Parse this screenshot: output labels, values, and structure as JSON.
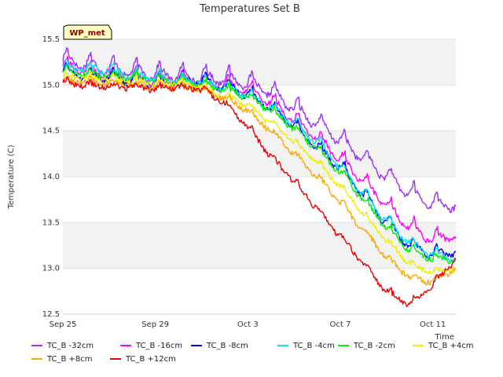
{
  "chart_data": {
    "type": "line",
    "title": "Temperatures Set B",
    "xlabel": "Time",
    "ylabel": "Temperature (C)",
    "badge": "WP_met",
    "x_range": [
      "2023-09-25",
      "2023-10-12"
    ],
    "x_ticks": [
      {
        "date": "2023-09-25",
        "label": "Sep 25"
      },
      {
        "date": "2023-09-29",
        "label": "Sep 29"
      },
      {
        "date": "2023-10-03",
        "label": "Oct 3"
      },
      {
        "date": "2023-10-07",
        "label": "Oct 7"
      },
      {
        "date": "2023-10-11",
        "label": "Oct 11"
      }
    ],
    "ylim": [
      12.5,
      15.5
    ],
    "y_ticks": [
      "12.5",
      "13.0",
      "13.5",
      "14.0",
      "14.5",
      "15.0",
      "15.5"
    ],
    "grid": "horizontal bands",
    "legend_position": "bottom",
    "series": [
      {
        "name": "TC_B -32cm",
        "color": "#9b30ff",
        "x": [
          "2023-09-25",
          "2023-09-26",
          "2023-09-27",
          "2023-09-28",
          "2023-09-29",
          "2023-09-30",
          "2023-10-01",
          "2023-10-02",
          "2023-10-03",
          "2023-10-04",
          "2023-10-05",
          "2023-10-06",
          "2023-10-07",
          "2023-10-08",
          "2023-10-09",
          "2023-10-10",
          "2023-10-11",
          "2023-10-12"
        ],
        "y": [
          15.28,
          15.22,
          15.18,
          15.15,
          15.12,
          15.1,
          15.08,
          15.07,
          15.02,
          14.92,
          14.75,
          14.58,
          14.4,
          14.2,
          14.0,
          13.82,
          13.7,
          13.68
        ]
      },
      {
        "name": "TC_B -16cm",
        "color": "#ff00ff",
        "x": [
          "2023-09-25",
          "2023-09-26",
          "2023-09-27",
          "2023-09-28",
          "2023-09-29",
          "2023-09-30",
          "2023-10-01",
          "2023-10-02",
          "2023-10-03",
          "2023-10-04",
          "2023-10-05",
          "2023-10-06",
          "2023-10-07",
          "2023-10-08",
          "2023-10-09",
          "2023-10-10",
          "2023-10-11",
          "2023-10-12"
        ],
        "y": [
          15.22,
          15.15,
          15.1,
          15.08,
          15.05,
          15.05,
          15.02,
          15.0,
          14.95,
          14.82,
          14.62,
          14.42,
          14.2,
          13.95,
          13.68,
          13.45,
          13.32,
          13.35
        ]
      },
      {
        "name": "TC_B -8cm",
        "color": "#0000ee",
        "x": [
          "2023-09-25",
          "2023-09-26",
          "2023-09-27",
          "2023-09-28",
          "2023-09-29",
          "2023-09-30",
          "2023-10-01",
          "2023-10-02",
          "2023-10-03",
          "2023-10-04",
          "2023-10-05",
          "2023-10-06",
          "2023-10-07",
          "2023-10-08",
          "2023-10-09",
          "2023-10-10",
          "2023-10-11",
          "2023-10-12"
        ],
        "y": [
          15.15,
          15.1,
          15.08,
          15.05,
          15.02,
          15.05,
          15.05,
          14.98,
          14.9,
          14.75,
          14.55,
          14.32,
          14.1,
          13.8,
          13.5,
          13.25,
          13.15,
          13.18
        ]
      },
      {
        "name": "TC_B -4cm",
        "color": "#00e5ee",
        "x": [
          "2023-09-25",
          "2023-09-26",
          "2023-09-27",
          "2023-09-28",
          "2023-09-29",
          "2023-09-30",
          "2023-10-01",
          "2023-10-02",
          "2023-10-03",
          "2023-10-04",
          "2023-10-05",
          "2023-10-06",
          "2023-10-07",
          "2023-10-08",
          "2023-10-09",
          "2023-10-10",
          "2023-10-11",
          "2023-10-12"
        ],
        "y": [
          15.2,
          15.18,
          15.15,
          15.1,
          15.08,
          15.06,
          15.03,
          14.97,
          14.9,
          14.75,
          14.58,
          14.38,
          14.1,
          13.82,
          13.52,
          13.28,
          13.15,
          13.1
        ]
      },
      {
        "name": "TC_B -2cm",
        "color": "#00ee00",
        "x": [
          "2023-09-25",
          "2023-09-26",
          "2023-09-27",
          "2023-09-28",
          "2023-09-29",
          "2023-09-30",
          "2023-10-01",
          "2023-10-02",
          "2023-10-03",
          "2023-10-04",
          "2023-10-05",
          "2023-10-06",
          "2023-10-07",
          "2023-10-08",
          "2023-10-09",
          "2023-10-10",
          "2023-10-11",
          "2023-10-12"
        ],
        "y": [
          15.15,
          15.12,
          15.1,
          15.08,
          15.05,
          15.04,
          15.01,
          14.95,
          14.88,
          14.72,
          14.52,
          14.3,
          14.05,
          13.75,
          13.45,
          13.2,
          13.1,
          13.1
        ]
      },
      {
        "name": "TC_B +4cm",
        "color": "#eeee00",
        "x": [
          "2023-09-25",
          "2023-09-26",
          "2023-09-27",
          "2023-09-28",
          "2023-09-29",
          "2023-09-30",
          "2023-10-01",
          "2023-10-02",
          "2023-10-03",
          "2023-10-04",
          "2023-10-05",
          "2023-10-06",
          "2023-10-07",
          "2023-10-08",
          "2023-10-09",
          "2023-10-10",
          "2023-10-11",
          "2023-10-12"
        ],
        "y": [
          15.1,
          15.08,
          15.06,
          15.04,
          15.02,
          15.02,
          14.98,
          14.88,
          14.78,
          14.58,
          14.38,
          14.15,
          13.9,
          13.6,
          13.3,
          13.05,
          12.95,
          13.0
        ]
      },
      {
        "name": "TC_B +8cm",
        "color": "#ffa500",
        "x": [
          "2023-09-25",
          "2023-09-26",
          "2023-09-27",
          "2023-09-28",
          "2023-09-29",
          "2023-09-30",
          "2023-10-01",
          "2023-10-02",
          "2023-10-03",
          "2023-10-04",
          "2023-10-05",
          "2023-10-06",
          "2023-10-07",
          "2023-10-08",
          "2023-10-09",
          "2023-10-10",
          "2023-10-11",
          "2023-10-12"
        ],
        "y": [
          15.05,
          15.04,
          15.02,
          15.0,
          14.98,
          14.98,
          14.95,
          14.85,
          14.72,
          14.5,
          14.25,
          14.0,
          13.72,
          13.42,
          13.12,
          12.9,
          12.85,
          13.0
        ]
      },
      {
        "name": "TC_B +12cm",
        "color": "#ee0000",
        "x": [
          "2023-09-25",
          "2023-09-26",
          "2023-09-27",
          "2023-09-28",
          "2023-09-29",
          "2023-09-30",
          "2023-10-01",
          "2023-10-02",
          "2023-10-03",
          "2023-10-04",
          "2023-10-05",
          "2023-10-06",
          "2023-10-07",
          "2023-10-08",
          "2023-10-09",
          "2023-10-10",
          "2023-10-11",
          "2023-10-12"
        ],
        "y": [
          15.02,
          15.0,
          14.98,
          14.98,
          14.96,
          14.98,
          14.95,
          14.8,
          14.55,
          14.22,
          13.95,
          13.65,
          13.35,
          13.05,
          12.75,
          12.6,
          12.82,
          13.1
        ]
      }
    ]
  }
}
